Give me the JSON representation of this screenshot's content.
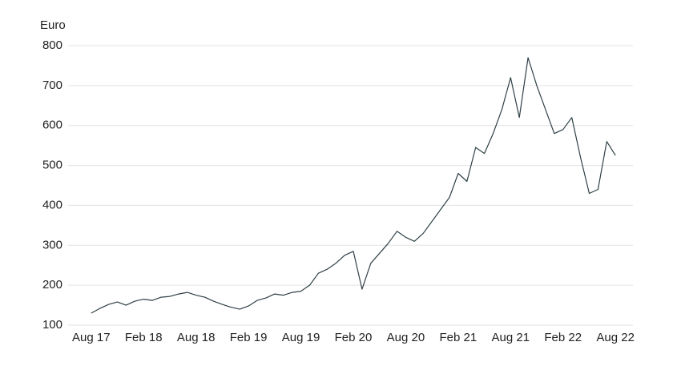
{
  "chart_data": {
    "type": "line",
    "y_label": "Euro",
    "x": [
      "2017-08",
      "2017-09",
      "2017-10",
      "2017-11",
      "2017-12",
      "2018-01",
      "2018-02",
      "2018-03",
      "2018-04",
      "2018-05",
      "2018-06",
      "2018-07",
      "2018-08",
      "2018-09",
      "2018-10",
      "2018-11",
      "2018-12",
      "2019-01",
      "2019-02",
      "2019-03",
      "2019-04",
      "2019-05",
      "2019-06",
      "2019-07",
      "2019-08",
      "2019-09",
      "2019-10",
      "2019-11",
      "2019-12",
      "2020-01",
      "2020-02",
      "2020-03",
      "2020-04",
      "2020-05",
      "2020-06",
      "2020-07",
      "2020-08",
      "2020-09",
      "2020-10",
      "2020-11",
      "2020-12",
      "2021-01",
      "2021-02",
      "2021-03",
      "2021-04",
      "2021-05",
      "2021-06",
      "2021-07",
      "2021-08",
      "2021-09",
      "2021-10",
      "2021-11",
      "2021-12",
      "2022-01",
      "2022-02",
      "2022-03",
      "2022-04",
      "2022-05",
      "2022-06",
      "2022-07",
      "2022-08"
    ],
    "series": [
      {
        "color": "#2f4046",
        "values": [
          130,
          142,
          152,
          158,
          150,
          160,
          165,
          162,
          170,
          172,
          178,
          182,
          175,
          170,
          160,
          152,
          145,
          140,
          148,
          162,
          168,
          178,
          175,
          182,
          185,
          200,
          230,
          240,
          255,
          275,
          285,
          190,
          255,
          280,
          305,
          335,
          320,
          310,
          330,
          360,
          390,
          420,
          480,
          460,
          545,
          530,
          580,
          640,
          720,
          620,
          770,
          700,
          640,
          580,
          590,
          620,
          520,
          430,
          440,
          560,
          525
        ]
      }
    ],
    "xlim": [
      "2017-06",
      "2022-10"
    ],
    "xticks": [
      {
        "value": "2017-08",
        "label": "Aug 17"
      },
      {
        "value": "2018-02",
        "label": "Feb 18"
      },
      {
        "value": "2018-08",
        "label": "Aug 18"
      },
      {
        "value": "2019-02",
        "label": "Feb 19"
      },
      {
        "value": "2019-08",
        "label": "Aug 19"
      },
      {
        "value": "2020-02",
        "label": "Feb 20"
      },
      {
        "value": "2020-08",
        "label": "Aug 20"
      },
      {
        "value": "2021-02",
        "label": "Feb 21"
      },
      {
        "value": "2021-08",
        "label": "Aug 21"
      },
      {
        "value": "2022-02",
        "label": "Feb 22"
      },
      {
        "value": "2022-08",
        "label": "Aug 22"
      }
    ],
    "ylim": [
      100,
      800
    ],
    "yticks": [
      100,
      200,
      300,
      400,
      500,
      600,
      700,
      800
    ],
    "grid": true
  }
}
